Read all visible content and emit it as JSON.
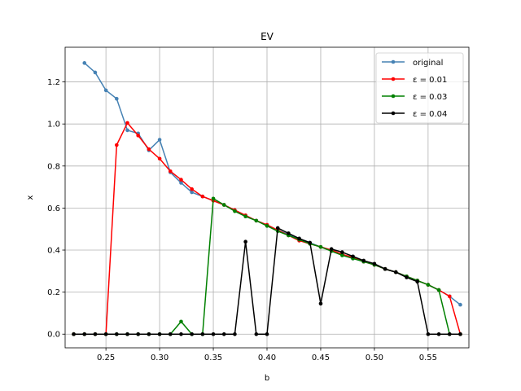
{
  "chart_data": {
    "type": "line",
    "title": "EV",
    "xlabel": "b",
    "ylabel": "x",
    "xlim": [
      0.212,
      0.588
    ],
    "ylim": [
      -0.065,
      1.365
    ],
    "xticks": [
      0.25,
      0.3,
      0.35,
      0.4,
      0.45,
      0.5,
      0.55
    ],
    "xtick_labels": [
      "0.25",
      "0.30",
      "0.35",
      "0.40",
      "0.45",
      "0.50",
      "0.55"
    ],
    "yticks": [
      0.0,
      0.2,
      0.4,
      0.6,
      0.8,
      1.0,
      1.2
    ],
    "ytick_labels": [
      "0.0",
      "0.2",
      "0.4",
      "0.6",
      "0.8",
      "1.0",
      "1.2"
    ],
    "grid": true,
    "legend_position": "top-right",
    "series": [
      {
        "name": "original",
        "color": "#4682b4",
        "x": [
          0.23,
          0.24,
          0.25,
          0.26,
          0.27,
          0.28,
          0.29,
          0.3,
          0.31,
          0.32,
          0.33,
          0.34,
          0.35,
          0.36,
          0.37,
          0.38,
          0.39,
          0.4,
          0.41,
          0.42,
          0.43,
          0.44,
          0.45,
          0.46,
          0.47,
          0.48,
          0.49,
          0.5,
          0.51,
          0.52,
          0.53,
          0.54,
          0.55,
          0.56,
          0.57,
          0.58
        ],
        "y": [
          1.29,
          1.245,
          1.16,
          1.12,
          0.97,
          0.955,
          0.875,
          0.925,
          0.77,
          0.72,
          0.675,
          0.655,
          0.635,
          0.615,
          0.59,
          0.565,
          0.54,
          0.52,
          0.495,
          0.475,
          0.455,
          0.435,
          0.415,
          0.4,
          0.38,
          0.36,
          0.345,
          0.33,
          0.31,
          0.295,
          0.275,
          0.255,
          0.235,
          0.21,
          0.18,
          0.14
        ]
      },
      {
        "name": "ε = 0.01",
        "color": "#ff0000",
        "x": [
          0.22,
          0.23,
          0.24,
          0.25,
          0.26,
          0.27,
          0.28,
          0.29,
          0.3,
          0.31,
          0.32,
          0.33,
          0.34,
          0.35,
          0.36,
          0.37,
          0.38,
          0.39,
          0.4,
          0.41,
          0.42,
          0.43,
          0.44,
          0.45,
          0.46,
          0.47,
          0.48,
          0.49,
          0.5,
          0.51,
          0.52,
          0.53,
          0.54,
          0.55,
          0.56,
          0.57,
          0.58
        ],
        "y": [
          0.0,
          0.0,
          0.0,
          0.0,
          0.9,
          1.005,
          0.945,
          0.88,
          0.835,
          0.775,
          0.735,
          0.69,
          0.655,
          0.635,
          0.615,
          0.59,
          0.565,
          0.54,
          0.52,
          0.495,
          0.47,
          0.445,
          0.43,
          0.415,
          0.4,
          0.38,
          0.365,
          0.345,
          0.33,
          0.31,
          0.295,
          0.275,
          0.255,
          0.235,
          0.21,
          0.18,
          0.0
        ]
      },
      {
        "name": "ε = 0.03",
        "color": "#008000",
        "x": [
          0.22,
          0.23,
          0.24,
          0.25,
          0.26,
          0.27,
          0.28,
          0.29,
          0.3,
          0.31,
          0.32,
          0.33,
          0.34,
          0.35,
          0.36,
          0.37,
          0.38,
          0.39,
          0.4,
          0.41,
          0.42,
          0.43,
          0.44,
          0.45,
          0.46,
          0.47,
          0.48,
          0.49,
          0.5,
          0.51,
          0.52,
          0.53,
          0.54,
          0.55,
          0.56,
          0.57,
          0.58
        ],
        "y": [
          0.0,
          0.0,
          0.0,
          0.0,
          0.0,
          0.0,
          0.0,
          0.0,
          0.0,
          0.0,
          0.06,
          0.0,
          0.0,
          0.645,
          0.615,
          0.585,
          0.56,
          0.54,
          0.515,
          0.49,
          0.47,
          0.45,
          0.43,
          0.415,
          0.395,
          0.375,
          0.36,
          0.345,
          0.33,
          0.31,
          0.295,
          0.275,
          0.255,
          0.235,
          0.21,
          0.0,
          0.0
        ]
      },
      {
        "name": "ε = 0.04",
        "color": "#000000",
        "x": [
          0.22,
          0.23,
          0.24,
          0.25,
          0.26,
          0.27,
          0.28,
          0.29,
          0.3,
          0.31,
          0.32,
          0.33,
          0.34,
          0.35,
          0.36,
          0.37,
          0.38,
          0.39,
          0.4,
          0.41,
          0.42,
          0.43,
          0.44,
          0.45,
          0.46,
          0.47,
          0.48,
          0.49,
          0.5,
          0.51,
          0.52,
          0.53,
          0.54,
          0.55,
          0.56,
          0.57,
          0.58
        ],
        "y": [
          0.0,
          0.0,
          0.0,
          0.0,
          0.0,
          0.0,
          0.0,
          0.0,
          0.0,
          0.0,
          0.0,
          0.0,
          0.0,
          0.0,
          0.0,
          0.0,
          0.44,
          0.0,
          0.0,
          0.505,
          0.48,
          0.455,
          0.435,
          0.145,
          0.405,
          0.39,
          0.37,
          0.35,
          0.335,
          0.31,
          0.295,
          0.27,
          0.25,
          0.0,
          0.0,
          0.0,
          0.0
        ]
      }
    ]
  }
}
